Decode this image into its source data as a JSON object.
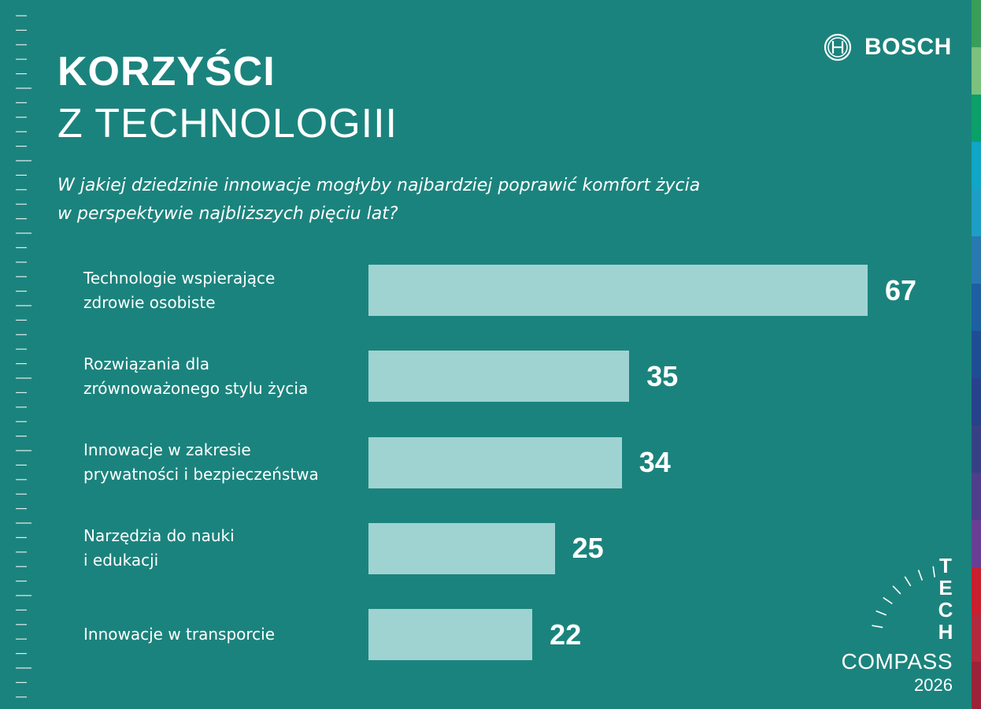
{
  "brand": {
    "name": "BOSCH",
    "logo_icon": "bosch-armature-icon"
  },
  "header": {
    "title_line1": "KORZYŚCI",
    "title_line2": "Z TECHNOLOGIII",
    "question_line1": "W jakiej dziedzinie innowacje mogłyby najbardziej poprawić komfort życia",
    "question_line2": "w perspektywie najbliższych pięciu lat?"
  },
  "chart_data": {
    "type": "bar",
    "orientation": "horizontal",
    "categories": [
      [
        "Technologie wspierające",
        "zdrowie osobiste"
      ],
      [
        "Rozwiązania dla",
        "zrównoważonego stylu życia"
      ],
      [
        "Innowacje w zakresie",
        "prywatności i bezpieczeństwa"
      ],
      [
        "Narzędzia do nauki",
        "i edukacji"
      ],
      [
        "Innowacje w transporcie"
      ]
    ],
    "values": [
      67,
      35,
      34,
      25,
      22
    ],
    "value_labels": [
      "67",
      "35",
      "34",
      "25",
      "22"
    ],
    "bar_color": "#9fd3d1",
    "xlim": [
      0,
      67
    ],
    "grid": false,
    "legend": "none"
  },
  "footer": {
    "tech_letters": [
      "T",
      "E",
      "C",
      "H"
    ],
    "compass_word": "COMPASS",
    "year": "2026"
  },
  "colors": {
    "background": "#1b837d",
    "text": "#ffffff",
    "stripes": [
      "#3a9d5a",
      "#7cc17d",
      "#0ba06a",
      "#11a5c6",
      "#1e9ec5",
      "#2979b0",
      "#1e5fa2",
      "#1f4d94",
      "#27428a",
      "#364184",
      "#4d3f8a",
      "#6a3f93",
      "#c8202f",
      "#b22a3e",
      "#9a2339"
    ]
  }
}
